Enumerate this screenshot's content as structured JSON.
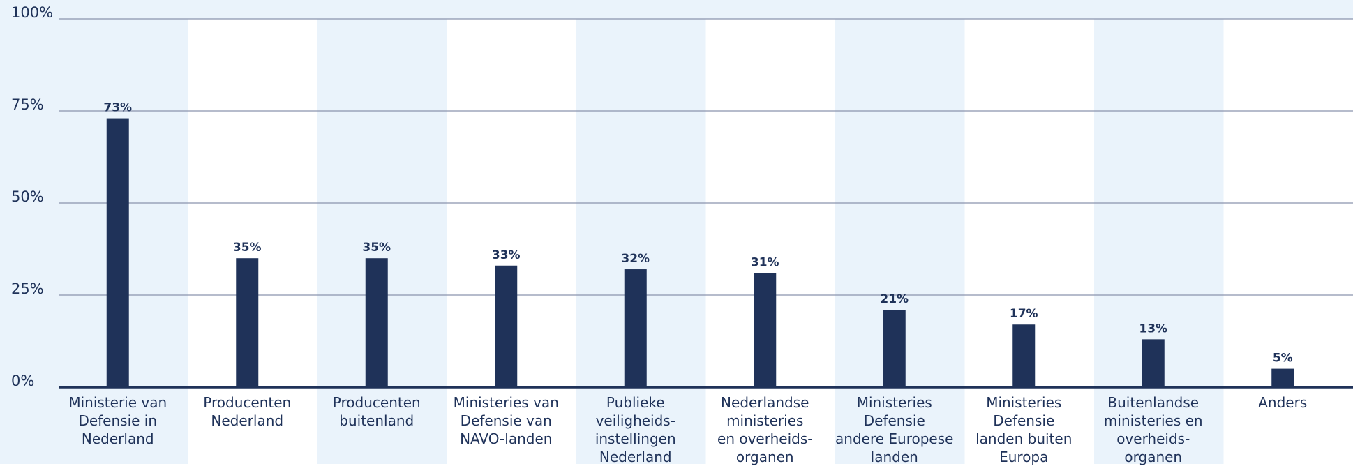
{
  "chart_data": {
    "type": "bar",
    "categories": [
      "Ministerie van\nDefensie in\nNederland",
      "Producenten\nNederland",
      "Producenten\nbuitenland",
      "Ministeries van\nDefensie van\nNAVO-landen",
      "Publieke\nveiligheids-\ninstellingen\nNederland",
      "Nederlandse\nministeries\nen overheids-\norganen",
      "Ministeries\nDefensie\nandere Europese\nlanden",
      "Ministeries\nDefensie\nlanden buiten\nEuropa",
      "Buitenlandse\nministeries en\noverheids-\norganen",
      "Anders"
    ],
    "values": [
      73,
      35,
      35,
      33,
      32,
      31,
      21,
      17,
      13,
      5
    ],
    "value_labels": [
      "73%",
      "35%",
      "35%",
      "33%",
      "32%",
      "31%",
      "21%",
      "17%",
      "13%",
      "5%"
    ],
    "color": "#1f3259",
    "ylim": [
      0,
      100
    ],
    "yticks": [
      {
        "value": 0,
        "label": "0%"
      },
      {
        "value": 25,
        "label": "25%"
      },
      {
        "value": 50,
        "label": "50%"
      },
      {
        "value": 75,
        "label": "75%"
      },
      {
        "value": 100,
        "label": "100%"
      }
    ],
    "grid": true
  }
}
